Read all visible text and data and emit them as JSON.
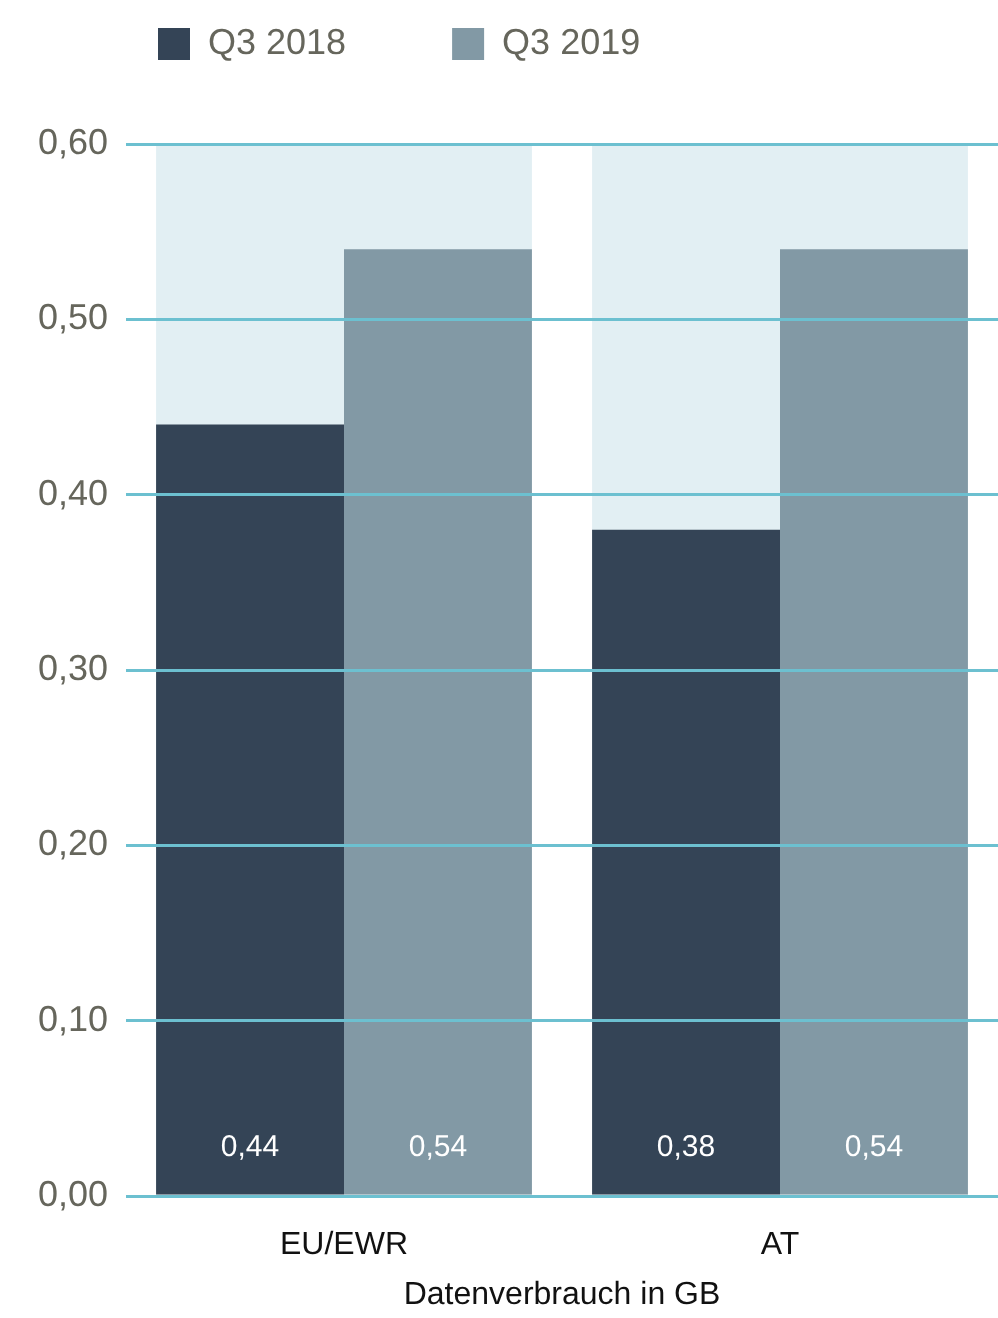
{
  "chart_data": {
    "type": "bar",
    "categories": [
      "EU/EWR",
      "AT"
    ],
    "series": [
      {
        "name": "Q3 2018",
        "color": "#344456",
        "values": [
          0.44,
          0.38
        ],
        "value_labels": [
          "0,44",
          "0,38"
        ]
      },
      {
        "name": "Q3 2019",
        "color": "#8299a5",
        "values": [
          0.54,
          0.54
        ],
        "value_labels": [
          "0,54",
          "0,54"
        ]
      }
    ],
    "xlabel": "Datenverbrauch in GB",
    "ylim": [
      0,
      0.6
    ],
    "yticks": [
      {
        "value": 0,
        "label": "0,00"
      },
      {
        "value": 0.1,
        "label": "0,10"
      },
      {
        "value": 0.2,
        "label": "0,20"
      },
      {
        "value": 0.3,
        "label": "0,30"
      },
      {
        "value": 0.4,
        "label": "0,40"
      },
      {
        "value": 0.5,
        "label": "0,50"
      },
      {
        "value": 0.6,
        "label": "0,60"
      }
    ],
    "grid": "y",
    "legend": "top left",
    "bands": [
      {
        "axis": "x",
        "from": "EU/EWR",
        "to": "EU/EWR",
        "color": "#e2eff3"
      },
      {
        "axis": "x",
        "from": "AT",
        "to": "AT",
        "color": "#e2eff3"
      }
    ]
  }
}
